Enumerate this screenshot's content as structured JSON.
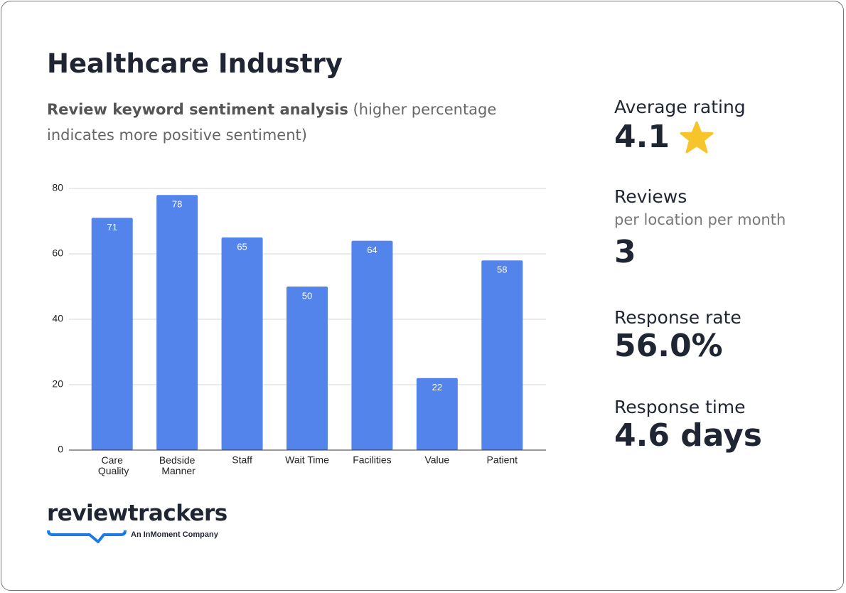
{
  "chart_data": {
    "type": "bar",
    "title": "Healthcare Industry",
    "subtitle": [
      "Review keyword sentiment analysis",
      "(higher percentage indicates more positive sentiment)"
    ],
    "categories": [
      "Care Quality",
      "Bedside Manner",
      "Staff",
      "Wait Time",
      "Facilities",
      "Value",
      "Patient"
    ],
    "values": [
      71,
      78,
      65,
      50,
      64,
      22,
      58
    ],
    "color": "#5384ec",
    "ylim": [
      0,
      80
    ],
    "yticks": [
      0,
      20,
      40,
      60,
      80
    ],
    "grid": true
  },
  "stats": [
    {
      "label": "Average rating",
      "value": "4.1"
    },
    {
      "label": "Reviews",
      "sublabel": "per location per month",
      "value": "3"
    },
    {
      "label": "Response rate",
      "value": "56.0%"
    },
    {
      "label": "Response time",
      "value": "4.6 days"
    }
  ],
  "logo": {
    "name": "reviewtrackers",
    "tagline": "An InMoment Company"
  }
}
